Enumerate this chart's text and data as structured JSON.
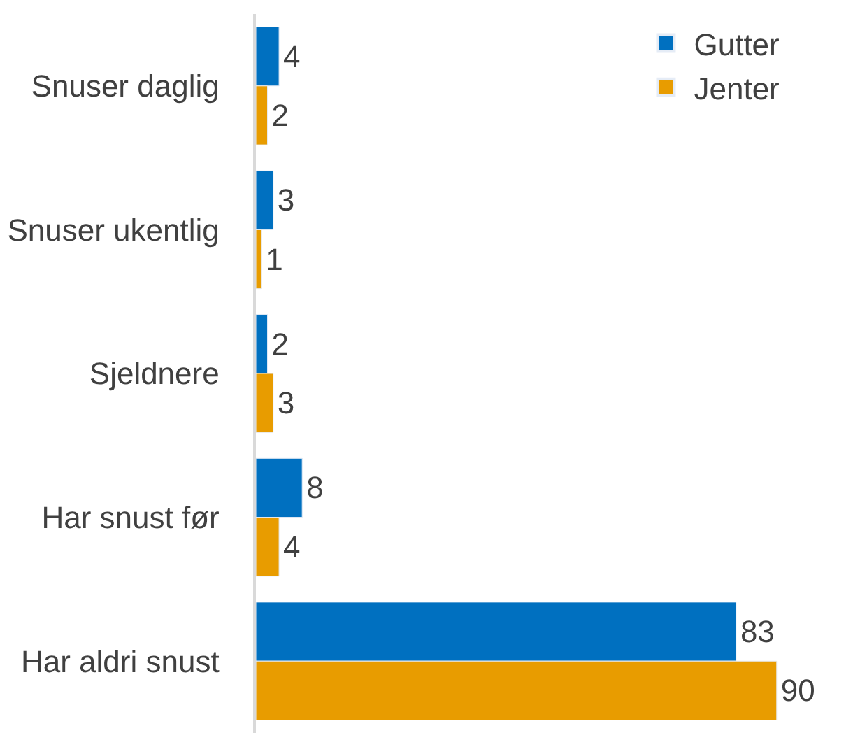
{
  "chart_data": {
    "type": "bar",
    "orientation": "horizontal",
    "categories": [
      "Snuser daglig",
      "Snuser ukentlig",
      "Sjeldnere",
      "Har snust før",
      "Har aldri snust"
    ],
    "series": [
      {
        "name": "Gutter",
        "color": "#0070c0",
        "values": [
          4,
          3,
          2,
          8,
          83
        ]
      },
      {
        "name": "Jenter",
        "color": "#e89c00",
        "values": [
          2,
          1,
          3,
          4,
          90
        ]
      }
    ],
    "data_labels": true,
    "legend": "top right"
  }
}
